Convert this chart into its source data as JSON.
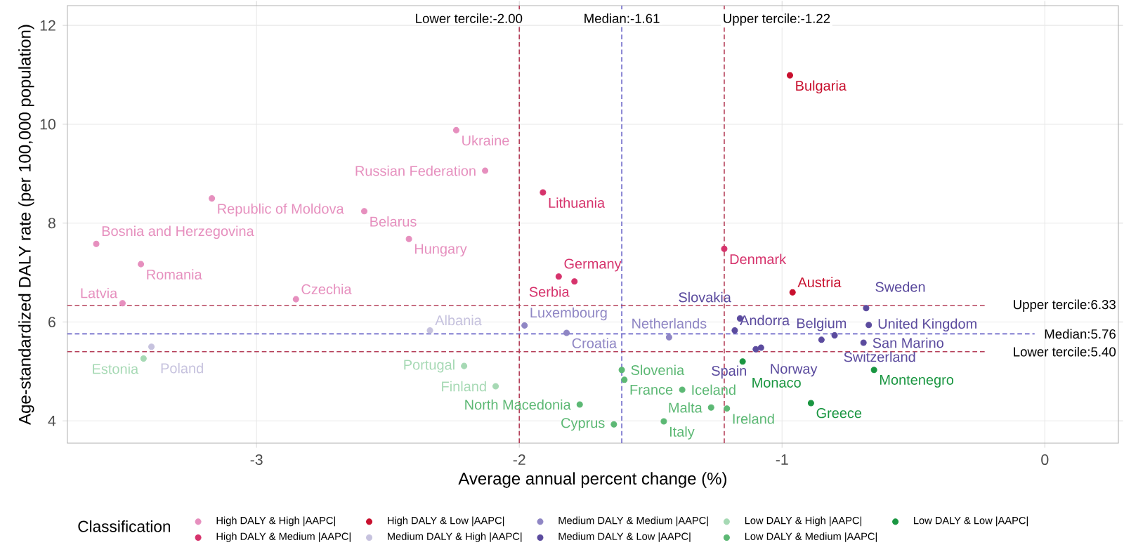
{
  "chart_data": {
    "type": "scatter",
    "xlabel": "Average annual  percent change (%)",
    "ylabel": "Age-standardized DALY rate (per 100,000 population)",
    "legend_title": "Classification",
    "xlim": [
      -3.72,
      0.28
    ],
    "ylim": [
      3.55,
      12.4
    ],
    "xticks": [
      -3,
      -2,
      -1,
      0
    ],
    "yticks": [
      4,
      6,
      8,
      10,
      12
    ],
    "grid": true,
    "legend": "bottom",
    "series": [
      {
        "name": "High DALY & High |AAPC|",
        "color": "#e68fbe",
        "x": [
          -3.17,
          -2.59,
          -2.42,
          -3.61,
          -3.44,
          -3.51,
          -2.85,
          -2.24,
          -2.13
        ],
        "values": [
          8.5,
          8.24,
          7.68,
          7.58,
          7.17,
          6.38,
          6.46,
          9.88,
          9.06
        ]
      },
      {
        "name": "High DALY & Medium |AAPC|",
        "color": "#d6336c",
        "x": [
          -1.91,
          -1.85,
          -1.79,
          -1.22
        ],
        "values": [
          8.62,
          6.92,
          6.82,
          7.48
        ]
      },
      {
        "name": "High DALY & Low |AAPC|",
        "color": "#c8102e",
        "x": [
          -0.97,
          -0.96
        ],
        "values": [
          10.99,
          6.6
        ]
      },
      {
        "name": "Medium DALY & High |AAPC|",
        "color": "#c6c2de",
        "x": [
          -2.34,
          -3.4
        ],
        "values": [
          5.83,
          5.5
        ]
      },
      {
        "name": "Medium DALY & Medium |AAPC|",
        "color": "#8f86c4",
        "x": [
          -1.98,
          -1.82,
          -1.43
        ],
        "values": [
          5.93,
          5.78,
          5.69
        ]
      },
      {
        "name": "Medium DALY & Low |AAPC|",
        "color": "#5b4b9e",
        "x": [
          -1.18,
          -1.16,
          -1.08,
          -1.1,
          -0.85,
          -0.8,
          -0.68,
          -0.67,
          -0.69
        ],
        "values": [
          5.83,
          6.07,
          5.48,
          5.45,
          5.64,
          5.73,
          6.28,
          5.94,
          5.58
        ]
      },
      {
        "name": "Low DALY & High |AAPC|",
        "color": "#a6d9b4",
        "x": [
          -3.43,
          -2.21,
          -2.09
        ],
        "values": [
          5.26,
          5.11,
          4.7
        ]
      },
      {
        "name": "Low DALY & Medium |AAPC|",
        "color": "#5cb874",
        "x": [
          -1.61,
          -1.6,
          -1.38,
          -1.77,
          -1.27,
          -1.21,
          -1.64,
          -1.45
        ],
        "values": [
          5.03,
          4.83,
          4.63,
          4.33,
          4.27,
          4.25,
          3.93,
          3.99
        ]
      },
      {
        "name": "Low DALY & Low |AAPC|",
        "color": "#1a9641",
        "x": [
          -1.15,
          -0.65,
          -0.89
        ],
        "values": [
          5.2,
          5.03,
          4.36
        ]
      }
    ],
    "ref_lines": [
      {
        "axis": "x",
        "value": -2.0,
        "label": "Lower tercile:-2.00",
        "color": "#b5405a",
        "line_style": "dashed"
      },
      {
        "axis": "x",
        "value": -1.61,
        "label": "Median:-1.61",
        "color": "#6a64c8",
        "line_style": "dashed"
      },
      {
        "axis": "x",
        "value": -1.22,
        "label": "Upper tercile:-1.22",
        "color": "#b5405a",
        "line_style": "dashed"
      },
      {
        "axis": "y",
        "value": 6.33,
        "label": "Upper tercile:6.33",
        "color": "#b5405a",
        "line_style": "dashed"
      },
      {
        "axis": "y",
        "value": 5.76,
        "label": "Median:5.76",
        "color": "#6a64c8",
        "line_style": "dashed"
      },
      {
        "axis": "y",
        "value": 5.4,
        "label": "Lower tercile:5.40",
        "color": "#b5405a",
        "line_style": "dashed"
      }
    ],
    "annotations": [
      {
        "text": "Republic of Moldova",
        "x": -3.17,
        "y": 8.5
      },
      {
        "text": "Belarus",
        "x": -2.59,
        "y": 8.24
      },
      {
        "text": "Hungary",
        "x": -2.42,
        "y": 7.68
      },
      {
        "text": "Bosnia and Herzegovina",
        "x": -3.61,
        "y": 7.58
      },
      {
        "text": "Romania",
        "x": -3.44,
        "y": 7.17
      },
      {
        "text": "Latvia",
        "x": -3.51,
        "y": 6.38
      },
      {
        "text": "Czechia",
        "x": -2.85,
        "y": 6.46
      },
      {
        "text": "Ukraine",
        "x": -2.24,
        "y": 9.88
      },
      {
        "text": "Russian Federation",
        "x": -2.13,
        "y": 9.06
      },
      {
        "text": "Lithuania",
        "x": -1.91,
        "y": 8.62
      },
      {
        "text": "Germany",
        "x": -1.85,
        "y": 6.92
      },
      {
        "text": "Serbia",
        "x": -1.79,
        "y": 6.82
      },
      {
        "text": "Denmark",
        "x": -1.22,
        "y": 7.48
      },
      {
        "text": "Bulgaria",
        "x": -0.97,
        "y": 10.99
      },
      {
        "text": "Austria",
        "x": -0.96,
        "y": 6.6
      },
      {
        "text": "Albania",
        "x": -2.34,
        "y": 5.83
      },
      {
        "text": "Poland",
        "x": -3.4,
        "y": 5.5
      },
      {
        "text": "Luxembourg",
        "x": -1.98,
        "y": 5.93
      },
      {
        "text": "Croatia",
        "x": -1.82,
        "y": 5.78
      },
      {
        "text": "Netherlands",
        "x": -1.43,
        "y": 5.69
      },
      {
        "text": "Andorra",
        "x": -1.18,
        "y": 5.83
      },
      {
        "text": "Slovakia",
        "x": -1.16,
        "y": 6.07
      },
      {
        "text": "Norway",
        "x": -1.08,
        "y": 5.48
      },
      {
        "text": "Spain",
        "x": -1.1,
        "y": 5.45
      },
      {
        "text": "Belgium",
        "x": -0.85,
        "y": 5.64
      },
      {
        "text": "Switzerland",
        "x": -0.8,
        "y": 5.73
      },
      {
        "text": "Sweden",
        "x": -0.68,
        "y": 6.28
      },
      {
        "text": "United Kingdom",
        "x": -0.67,
        "y": 5.94
      },
      {
        "text": "San Marino",
        "x": -0.69,
        "y": 5.58
      },
      {
        "text": "Estonia",
        "x": -3.43,
        "y": 5.26
      },
      {
        "text": "Portugal",
        "x": -2.21,
        "y": 5.11
      },
      {
        "text": "Finland",
        "x": -2.09,
        "y": 4.7
      },
      {
        "text": "Slovenia",
        "x": -1.61,
        "y": 5.03
      },
      {
        "text": "France",
        "x": -1.6,
        "y": 4.83
      },
      {
        "text": "Iceland",
        "x": -1.38,
        "y": 4.63
      },
      {
        "text": "North Macedonia",
        "x": -1.77,
        "y": 4.33
      },
      {
        "text": "Malta",
        "x": -1.27,
        "y": 4.27
      },
      {
        "text": "Ireland",
        "x": -1.21,
        "y": 4.25
      },
      {
        "text": "Cyprus",
        "x": -1.64,
        "y": 3.93
      },
      {
        "text": "Italy",
        "x": -1.45,
        "y": 3.99
      },
      {
        "text": "Monaco",
        "x": -1.15,
        "y": 5.2
      },
      {
        "text": "Montenegro",
        "x": -0.65,
        "y": 5.03
      },
      {
        "text": "Greece",
        "x": -0.89,
        "y": 4.36
      }
    ]
  }
}
